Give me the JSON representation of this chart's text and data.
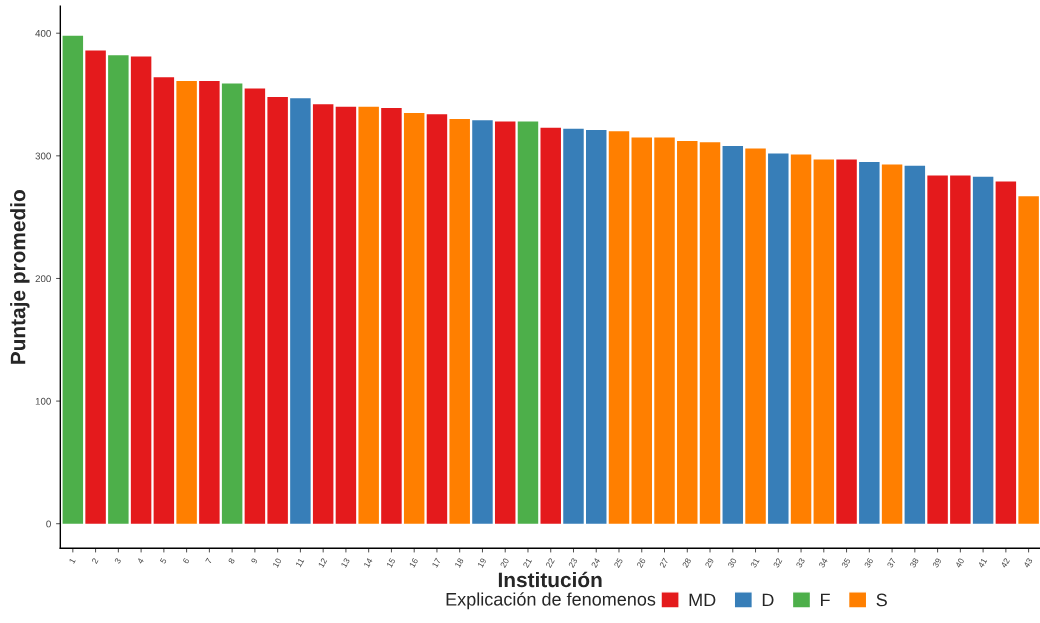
{
  "chart_data": {
    "type": "bar",
    "xlabel": "Institución",
    "ylabel": "Puntaje promedio",
    "legend_title": "Explicación de fenomenos",
    "categories": [
      "1",
      "2",
      "3",
      "4",
      "5",
      "6",
      "7",
      "8",
      "9",
      "10",
      "11",
      "12",
      "13",
      "14",
      "15",
      "16",
      "17",
      "18",
      "19",
      "20",
      "21",
      "22",
      "23",
      "24",
      "25",
      "26",
      "27",
      "28",
      "29",
      "30",
      "31",
      "32",
      "33",
      "34",
      "35",
      "36",
      "37",
      "38",
      "39",
      "40",
      "41",
      "42",
      "43"
    ],
    "series": [
      {
        "name": "MD",
        "color": "#e41a1c",
        "values": [
          null,
          386,
          null,
          381,
          364,
          null,
          361,
          null,
          355,
          348,
          null,
          342,
          340,
          null,
          339,
          null,
          334,
          null,
          null,
          328,
          null,
          323,
          null,
          null,
          null,
          null,
          null,
          null,
          null,
          null,
          null,
          null,
          null,
          null,
          297,
          null,
          null,
          null,
          284,
          284,
          null,
          279,
          null
        ]
      },
      {
        "name": "D",
        "color": "#377eb8",
        "values": [
          null,
          null,
          null,
          null,
          null,
          null,
          null,
          null,
          null,
          null,
          347,
          null,
          null,
          null,
          null,
          null,
          null,
          null,
          329,
          null,
          null,
          null,
          322,
          321,
          null,
          null,
          null,
          null,
          null,
          308,
          null,
          302,
          null,
          null,
          null,
          295,
          null,
          292,
          null,
          null,
          283,
          null,
          null
        ]
      },
      {
        "name": "F",
        "color": "#4daf4a",
        "values": [
          398,
          null,
          382,
          null,
          null,
          null,
          null,
          359,
          null,
          null,
          null,
          null,
          null,
          null,
          null,
          null,
          null,
          null,
          null,
          null,
          328,
          null,
          null,
          null,
          null,
          null,
          null,
          null,
          null,
          null,
          null,
          null,
          null,
          null,
          null,
          null,
          null,
          null,
          null,
          null,
          null,
          null,
          null
        ]
      },
      {
        "name": "S",
        "color": "#ff7f00",
        "values": [
          null,
          null,
          null,
          null,
          null,
          361,
          null,
          null,
          null,
          null,
          null,
          null,
          null,
          340,
          null,
          335,
          null,
          330,
          null,
          null,
          null,
          null,
          null,
          null,
          320,
          315,
          315,
          312,
          311,
          null,
          306,
          null,
          301,
          297,
          null,
          null,
          293,
          null,
          null,
          null,
          null,
          null,
          267
        ]
      }
    ],
    "ylim": [
      -20,
      422
    ],
    "yticks": [
      0,
      100,
      200,
      300,
      400
    ],
    "grid": false,
    "legend": "bottom"
  }
}
